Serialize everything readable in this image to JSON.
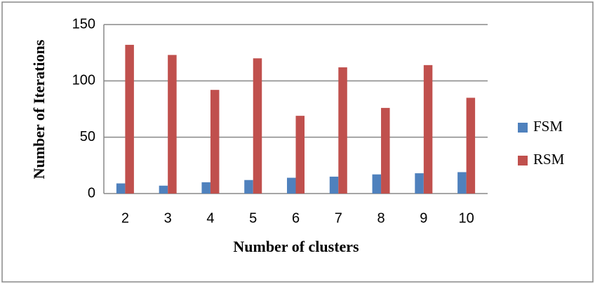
{
  "chart_data": {
    "type": "bar",
    "x_label": "Number of clusters",
    "y_label": "Number of Iterations",
    "categories": [
      2,
      3,
      4,
      5,
      6,
      7,
      8,
      9,
      10
    ],
    "series": [
      {
        "name": "FSM",
        "color": "#4f81bd",
        "values": [
          9,
          7,
          10,
          12,
          14,
          15,
          17,
          18,
          19
        ]
      },
      {
        "name": "RSM",
        "color": "#c0504d",
        "values": [
          132,
          123,
          92,
          120,
          69,
          112,
          76,
          114,
          85
        ]
      }
    ],
    "ylim": [
      0,
      150
    ],
    "yticks": [
      0,
      50,
      100,
      150
    ],
    "grid": true,
    "legend": "right"
  }
}
